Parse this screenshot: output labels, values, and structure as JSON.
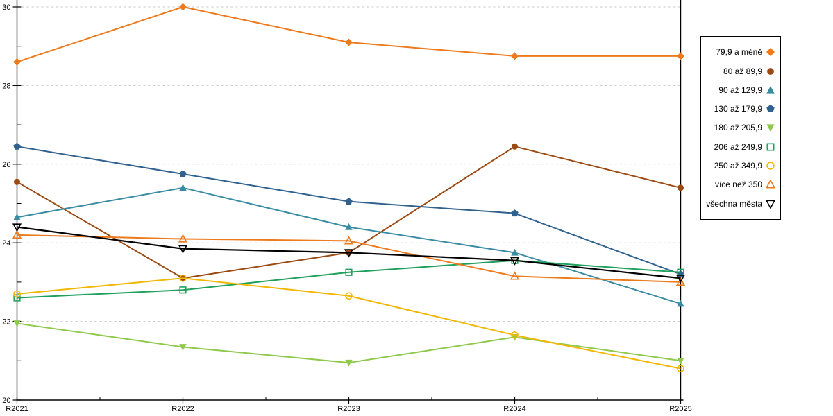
{
  "chart_data": {
    "type": "line",
    "title": "",
    "xlabel": "",
    "ylabel": "",
    "x_categories": [
      "R2021",
      "R2022",
      "R2023",
      "R2024",
      "R2025"
    ],
    "ylim": [
      20,
      30
    ],
    "y_tick_labels": [
      "20",
      "22",
      "24",
      "26",
      "28",
      "30"
    ],
    "y_major_ticks": [
      20,
      22,
      24,
      26,
      28,
      30
    ],
    "y_minor_ticks": [
      21,
      23,
      25,
      27,
      29
    ],
    "grid": "horizontal-dashed-at-major-ticks",
    "legend_position": "right",
    "colors": {
      "grid": "#c6c6c6",
      "axis": "#000000"
    },
    "series": [
      {
        "name": "79,9 a méně",
        "marker": "diamond",
        "fill": "solid",
        "color": "#ED7A1C",
        "values": [
          28.6,
          30.0,
          29.1,
          28.75,
          28.75
        ]
      },
      {
        "name": "80 až 89,9",
        "marker": "circle",
        "fill": "solid",
        "color": "#9C4A13",
        "values": [
          25.55,
          23.1,
          23.75,
          26.45,
          25.4
        ]
      },
      {
        "name": "90 až 129,9",
        "marker": "triangle-up",
        "fill": "solid",
        "color": "#3A8CA3",
        "values": [
          24.65,
          25.4,
          24.4,
          23.75,
          22.45
        ]
      },
      {
        "name": "130 až 179,9",
        "marker": "pentagon",
        "fill": "solid",
        "color": "#31618F",
        "values": [
          26.45,
          25.75,
          25.05,
          24.75,
          23.2
        ]
      },
      {
        "name": "180 až 205,9",
        "marker": "triangle-down",
        "fill": "solid",
        "color": "#8FC94C",
        "values": [
          21.95,
          21.35,
          20.95,
          21.6,
          21.0
        ]
      },
      {
        "name": "206 až 249,9",
        "marker": "square",
        "fill": "hollow",
        "color": "#1FA05C",
        "values": [
          22.6,
          22.8,
          23.25,
          23.55,
          23.25
        ]
      },
      {
        "name": "250 až 349,9",
        "marker": "circle",
        "fill": "hollow",
        "color": "#F2B705",
        "values": [
          22.7,
          23.1,
          22.65,
          21.65,
          20.8
        ]
      },
      {
        "name": "více než 350",
        "marker": "triangle-up",
        "fill": "hollow",
        "color": "#ED7A1C",
        "values": [
          24.2,
          24.1,
          24.05,
          23.15,
          23.0
        ]
      },
      {
        "name": "všechna města",
        "marker": "triangle-down",
        "fill": "hollow",
        "color": "#000000",
        "values": [
          24.4,
          23.85,
          23.75,
          23.55,
          23.1
        ]
      }
    ]
  }
}
